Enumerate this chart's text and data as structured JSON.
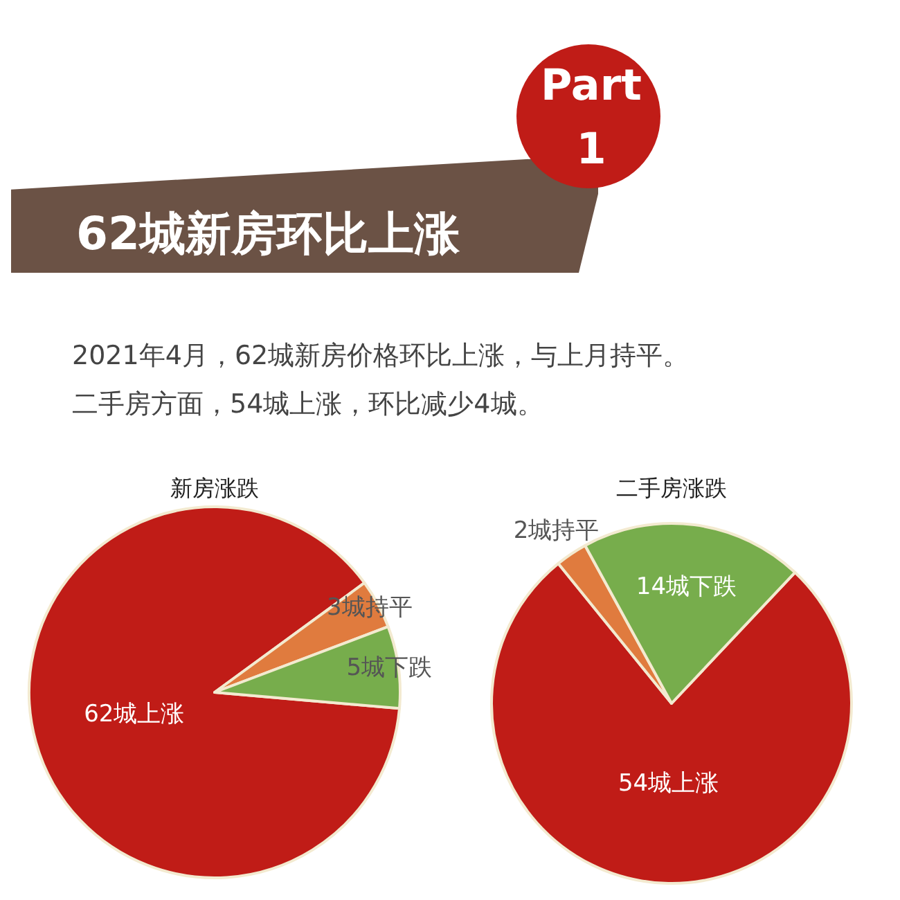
{
  "chart_data": [
    {
      "type": "other",
      "title": "62城新房环比上涨",
      "annotations": [
        "Part",
        "1",
        "2021年4月，62城新房价格环比上涨，与上月持平。",
        "二手房方面，54城上涨，环比减少4城。"
      ]
    },
    {
      "type": "pie",
      "title": "新房涨跌",
      "categories": [
        "62城上涨",
        "3城持平",
        "5城下跌"
      ],
      "values": [
        62,
        3,
        5
      ],
      "colors": [
        "#c01c17",
        "#e07b3e",
        "#77ad4c"
      ]
    },
    {
      "type": "pie",
      "title": "二手房涨跌",
      "categories": [
        "54城上涨",
        "2城持平",
        "14城下跌"
      ],
      "values": [
        54,
        2,
        14
      ],
      "colors": [
        "#c01c17",
        "#e07b3e",
        "#77ad4c"
      ]
    }
  ]
}
